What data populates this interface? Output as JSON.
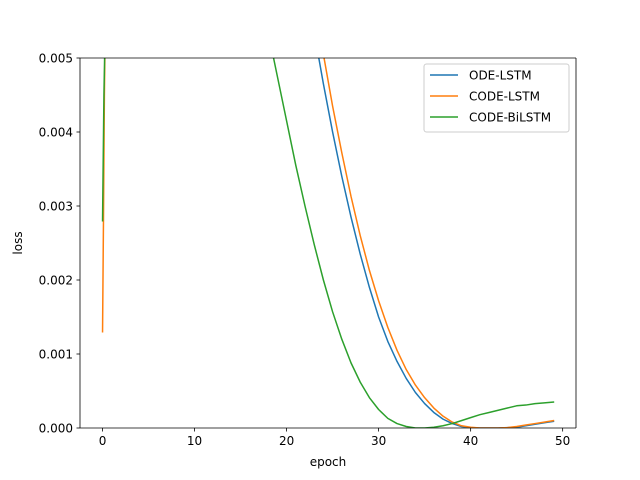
{
  "chart_data": {
    "type": "line",
    "title": "",
    "xlabel": "epoch",
    "ylabel": "loss",
    "xlim": [
      -2.45,
      51.45
    ],
    "ylim": [
      0,
      0.005
    ],
    "xticks": [
      0,
      10,
      20,
      30,
      40,
      50
    ],
    "xtick_labels": [
      "0",
      "10",
      "20",
      "30",
      "40",
      "50"
    ],
    "yticks": [
      0,
      0.001,
      0.002,
      0.003,
      0.004,
      0.005
    ],
    "ytick_labels": [
      "0.000",
      "0.001",
      "0.002",
      "0.003",
      "0.004",
      "0.005"
    ],
    "grid": false,
    "legend_position": "upper right",
    "series": [
      {
        "name": "ODE-LSTM",
        "color": "#1f77b4",
        "x": [
          23,
          24,
          25,
          26,
          27,
          28,
          29,
          30,
          31,
          32,
          33,
          34,
          35,
          36,
          37,
          38,
          39,
          40,
          41,
          42,
          43,
          44,
          45,
          46,
          47,
          48,
          49
        ],
        "y": [
          0.00535,
          0.00465,
          0.004,
          0.0034,
          0.00285,
          0.00235,
          0.0019,
          0.0015,
          0.00117,
          0.0009,
          0.00067,
          0.00048,
          0.00033,
          0.00021,
          0.00012,
          6e-05,
          2e-05,
          5e-06,
          0.0,
          0.0,
          0.0,
          5e-06,
          1e-05,
          3e-05,
          5e-05,
          7e-05,
          9e-05
        ]
      },
      {
        "name": "CODE-LSTM",
        "color": "#ff7f0e",
        "x": [
          0,
          0.1,
          0.2,
          0.3,
          24,
          25,
          26,
          27,
          28,
          29,
          30,
          31,
          32,
          33,
          34,
          35,
          36,
          37,
          38,
          39,
          40,
          41,
          42,
          43,
          44,
          45,
          46,
          47,
          48,
          49
        ],
        "y": [
          0.0013,
          0.0028,
          0.0045,
          0.0055,
          0.00505,
          0.00435,
          0.00372,
          0.00313,
          0.0026,
          0.00213,
          0.00172,
          0.00136,
          0.00105,
          0.00079,
          0.00058,
          0.00041,
          0.00027,
          0.00016,
          8e-05,
          3e-05,
          1e-05,
          0.0,
          0.0,
          0.0,
          5e-06,
          2e-05,
          4e-05,
          6e-05,
          8e-05,
          0.0001
        ]
      },
      {
        "name": "CODE-BiLSTM",
        "color": "#2ca02c",
        "x": [
          0,
          0.15,
          0.3,
          18.5,
          19,
          20,
          21,
          22,
          23,
          24,
          25,
          26,
          27,
          28,
          29,
          30,
          31,
          32,
          33,
          34,
          35,
          36,
          37,
          38,
          39,
          40,
          41,
          42,
          43,
          44,
          45,
          46,
          47,
          48,
          49
        ],
        "y": [
          0.0028,
          0.0045,
          0.0055,
          0.00505,
          0.00475,
          0.00415,
          0.00355,
          0.003,
          0.00248,
          0.002,
          0.00157,
          0.0012,
          0.00088,
          0.00062,
          0.00041,
          0.00025,
          0.00013,
          6e-05,
          2e-05,
          0.0,
          0.0,
          1e-05,
          3e-05,
          6e-05,
          0.0001,
          0.00014,
          0.00018,
          0.00021,
          0.00024,
          0.00027,
          0.0003,
          0.00031,
          0.00033,
          0.00034,
          0.00035
        ]
      }
    ]
  }
}
